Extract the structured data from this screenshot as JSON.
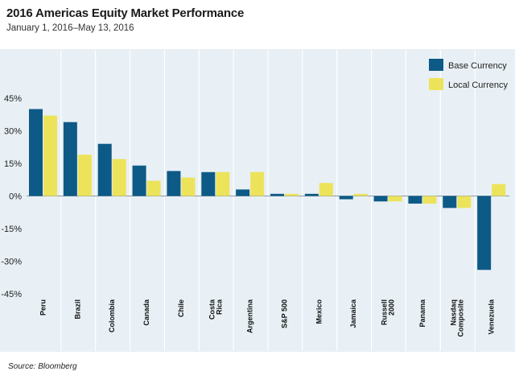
{
  "header": {
    "title": "2016 Americas Equity Market Performance",
    "subtitle": "January 1, 2016–May 13, 2016"
  },
  "footer": {
    "source": "Source: Bloomberg"
  },
  "colors": {
    "base": "#0d5a86",
    "local": "#ece35a",
    "panel": "#e8f0f5",
    "grid": "#ffffff"
  },
  "chart_data": {
    "type": "bar",
    "title": "2016 Americas Equity Market Performance",
    "subtitle": "January 1, 2016–May 13, 2016",
    "categories": [
      [
        "Peru"
      ],
      [
        "Brazil"
      ],
      [
        "Colombia"
      ],
      [
        "Canada"
      ],
      [
        "Chile"
      ],
      [
        "Costa",
        "Rica"
      ],
      [
        "Argentina"
      ],
      [
        "S&P 500"
      ],
      [
        "Mexico"
      ],
      [
        "Jamaica"
      ],
      [
        "Russell",
        "2000"
      ],
      [
        "Panama"
      ],
      [
        "Nasdaq",
        "Composite"
      ],
      [
        "Venezuela"
      ]
    ],
    "series": [
      {
        "name": "Base Currency",
        "values": [
          40,
          34,
          24,
          14,
          11.5,
          11,
          3,
          1,
          1,
          -1.5,
          -2.5,
          -3.5,
          -5.5,
          -34
        ]
      },
      {
        "name": "Local Currency",
        "values": [
          37,
          19,
          17,
          7,
          8.5,
          11,
          11,
          1,
          6,
          1,
          -2.5,
          -3.5,
          -5.5,
          5.5
        ]
      }
    ],
    "yticks": [
      "45%",
      "30%",
      "15%",
      "0%",
      "-15%",
      "-30%",
      "-45%"
    ],
    "ytick_values": [
      45,
      30,
      15,
      0,
      -15,
      -30,
      -45
    ],
    "ylim": [
      -45,
      45
    ],
    "legend_position": "top-right",
    "grid": true
  }
}
